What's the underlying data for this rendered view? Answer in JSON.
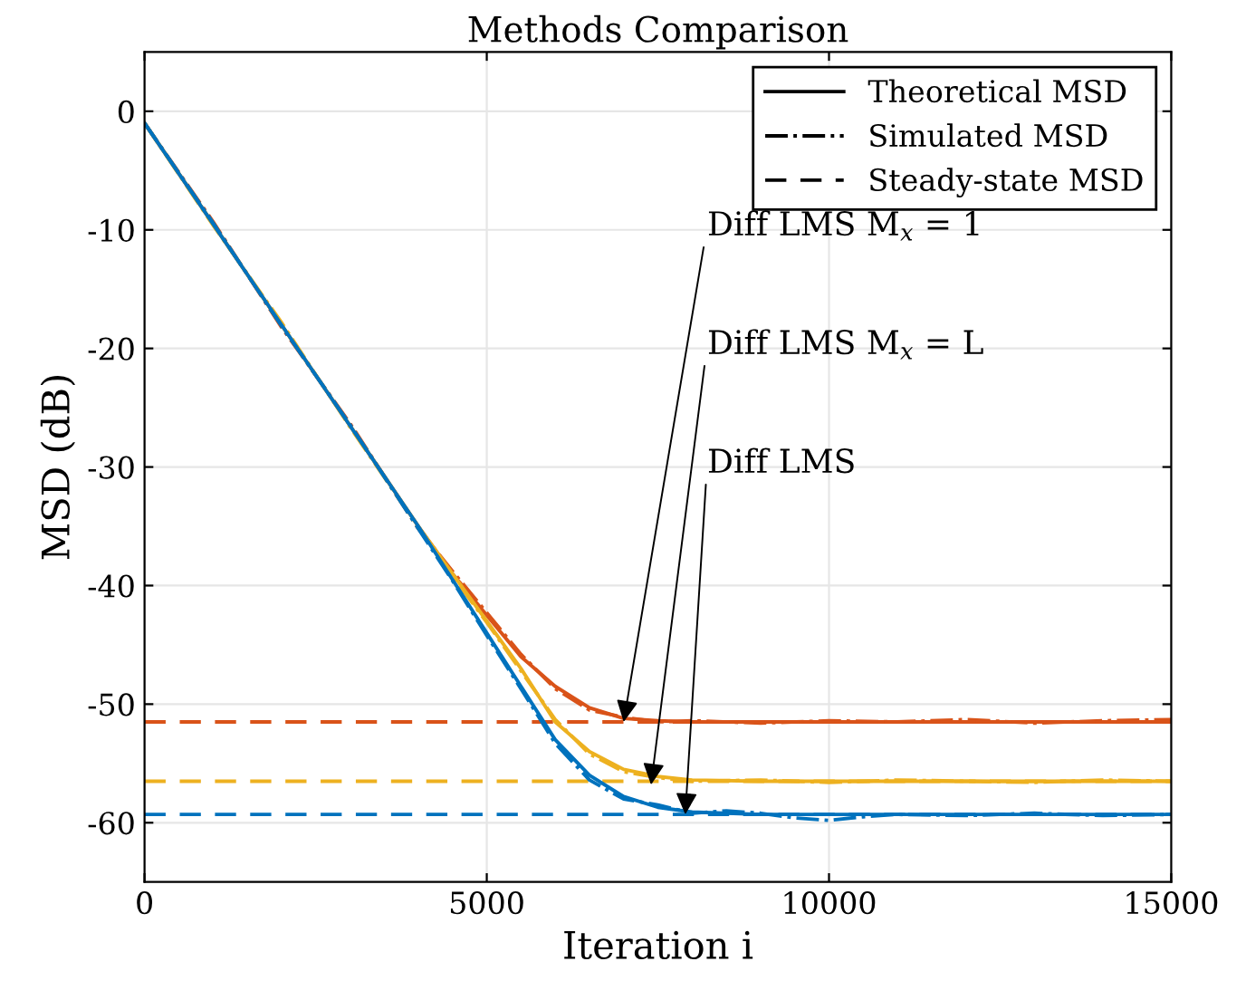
{
  "chart_data": {
    "type": "line",
    "title": "Methods Comparison",
    "xlabel": "Iteration i",
    "ylabel": "MSD (dB)",
    "xlim": [
      0,
      15000
    ],
    "ylim": [
      -65,
      5
    ],
    "xticks": [
      0,
      5000,
      10000,
      15000
    ],
    "yticks": [
      -60,
      -50,
      -40,
      -30,
      -20,
      -10,
      0
    ],
    "grid": true,
    "legend": "top right",
    "series": [
      {
        "name": "Theoretical MSD",
        "color": "#000000",
        "line_style": "solid"
      },
      {
        "name": "Simulated MSD",
        "color": "#000000",
        "line_style": "dashdot"
      },
      {
        "name": "Steady-state MSD",
        "color": "#000000",
        "line_style": "dashed"
      },
      {
        "color": "#d95319",
        "line_style": "solid",
        "x": [
          0,
          1000,
          2000,
          3000,
          4000,
          4500,
          5000,
          5500,
          6000,
          6500,
          7000,
          7500,
          8000,
          9000,
          10000,
          12000,
          15000
        ],
        "values": [
          -1,
          -9.5,
          -18,
          -26.5,
          -35,
          -39,
          -42.5,
          -46,
          -48.5,
          -50.3,
          -51.2,
          -51.4,
          -51.5,
          -51.5,
          -51.5,
          -51.5,
          -51.5
        ]
      },
      {
        "color": "#d95319",
        "line_style": "dashdot",
        "x": [
          0,
          1000,
          2000,
          3000,
          4000,
          4500,
          5000,
          5500,
          6000,
          6500,
          7000,
          7500,
          8000,
          9000,
          10000,
          11000,
          12000,
          13000,
          14000,
          15000
        ],
        "values": [
          -1,
          -9.3,
          -18.2,
          -26.3,
          -35.2,
          -38.8,
          -42.3,
          -45.8,
          -48.7,
          -50.5,
          -51.1,
          -51.5,
          -51.4,
          -51.6,
          -51.4,
          -51.5,
          -51.3,
          -51.6,
          -51.4,
          -51.3
        ]
      },
      {
        "color": "#d95319",
        "line_style": "dashed",
        "x": [
          0,
          15000
        ],
        "values": [
          -51.5,
          -51.5
        ]
      },
      {
        "color": "#edb120",
        "line_style": "solid",
        "x": [
          0,
          1000,
          2000,
          3000,
          4000,
          4500,
          5000,
          5500,
          6000,
          6500,
          7000,
          7500,
          8000,
          9000,
          10000,
          12000,
          15000
        ],
        "values": [
          -1,
          -9.5,
          -18,
          -26.5,
          -35,
          -39,
          -43,
          -47,
          -51.5,
          -54,
          -55.5,
          -56.1,
          -56.4,
          -56.5,
          -56.5,
          -56.5,
          -56.5
        ]
      },
      {
        "color": "#edb120",
        "line_style": "dashdot",
        "x": [
          0,
          1000,
          2000,
          3000,
          4000,
          4500,
          5000,
          5500,
          6000,
          6500,
          7000,
          7500,
          8000,
          9000,
          10000,
          11000,
          12000,
          13000,
          14000,
          15000
        ],
        "values": [
          -1,
          -9.6,
          -17.8,
          -26.6,
          -35.1,
          -39.2,
          -43.1,
          -47.2,
          -51.3,
          -54.2,
          -55.7,
          -56.2,
          -56.5,
          -56.4,
          -56.6,
          -56.4,
          -56.5,
          -56.6,
          -56.4,
          -56.5
        ]
      },
      {
        "color": "#edb120",
        "line_style": "dashed",
        "x": [
          0,
          15000
        ],
        "values": [
          -56.5,
          -56.5
        ]
      },
      {
        "color": "#0072bd",
        "line_style": "solid",
        "x": [
          0,
          1000,
          2000,
          3000,
          4000,
          4500,
          5000,
          5500,
          6000,
          6500,
          7000,
          7500,
          8000,
          9000,
          10000,
          12000,
          15000
        ],
        "values": [
          -1,
          -9.5,
          -18,
          -26.5,
          -35,
          -39.5,
          -44,
          -48.5,
          -53,
          -56,
          -57.8,
          -58.7,
          -59.1,
          -59.3,
          -59.3,
          -59.3,
          -59.3
        ]
      },
      {
        "color": "#0072bd",
        "line_style": "dashdot",
        "x": [
          0,
          1000,
          2000,
          3000,
          4000,
          4500,
          5000,
          5500,
          6000,
          6500,
          7000,
          7500,
          8000,
          8500,
          9000,
          9500,
          10000,
          10500,
          11000,
          12000,
          13000,
          14000,
          15000
        ],
        "values": [
          -1,
          -9.4,
          -18.1,
          -26.4,
          -35.2,
          -39.6,
          -44.2,
          -48.7,
          -53.3,
          -56.4,
          -58,
          -58.5,
          -59.2,
          -59,
          -59.2,
          -59.6,
          -59.8,
          -59.5,
          -59.3,
          -59.4,
          -59.2,
          -59.4,
          -59.3
        ]
      },
      {
        "color": "#0072bd",
        "line_style": "dashed",
        "x": [
          0,
          15000
        ],
        "values": [
          -59.3,
          -59.3
        ]
      }
    ],
    "annotations": [
      {
        "text": "Diff LMS M$_{x}$ = 1",
        "x": 7000,
        "y": -51.5
      },
      {
        "text": "Diff LMS M$_{x}$ = L",
        "x": 7400,
        "y": -56.8
      },
      {
        "text": "Diff LMS",
        "x": 7900,
        "y": -59.3
      }
    ]
  }
}
